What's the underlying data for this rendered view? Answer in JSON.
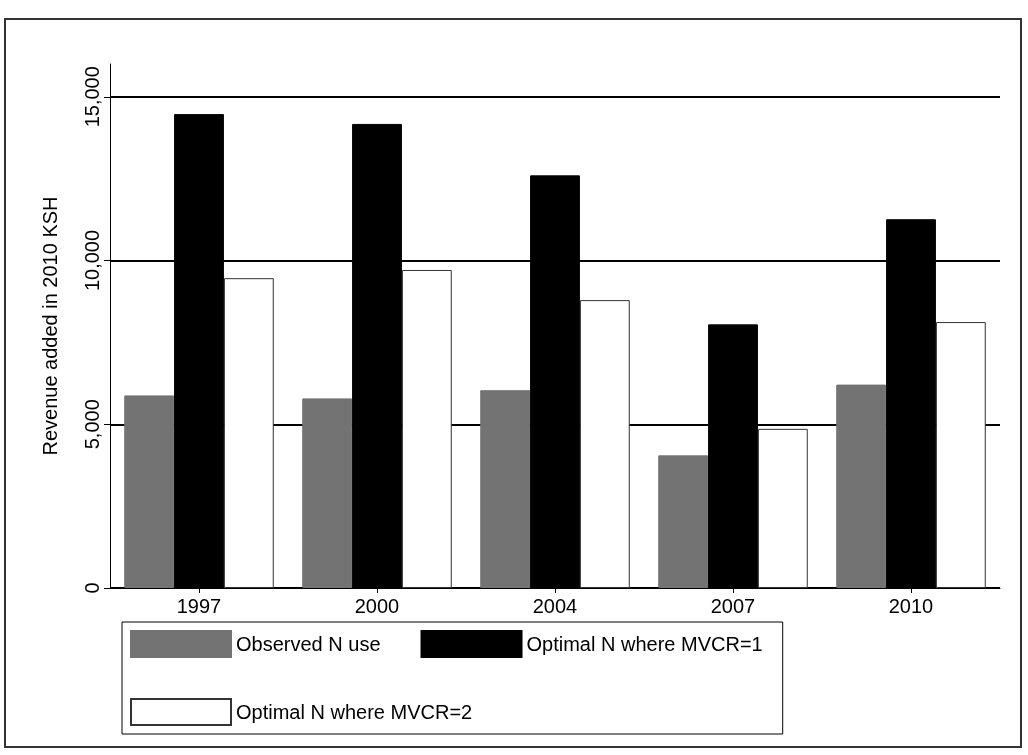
{
  "chart_data": {
    "type": "bar",
    "ylabel": "Revenue added in 2010 KSH",
    "categories": [
      "1997",
      "2000",
      "2004",
      "2007",
      "2010"
    ],
    "series": [
      {
        "name": "Observed N use",
        "color": "#737373",
        "values": [
          5880,
          5790,
          6040,
          4050,
          6210
        ]
      },
      {
        "name": "Optimal N where MVCR=1",
        "color": "#000000",
        "values": [
          14470,
          14170,
          12600,
          8050,
          11260
        ]
      },
      {
        "name": "Optimal N where MVCR=2",
        "color": "#ffffff",
        "values": [
          9460,
          9710,
          8790,
          4860,
          8120
        ]
      }
    ],
    "ylim": [
      0,
      16000
    ],
    "yticks": [
      0,
      {
        "value": 5000,
        "label": "5,000"
      },
      {
        "value": 10000,
        "label": "10,000"
      },
      {
        "value": 15000,
        "label": "15,000"
      }
    ],
    "grid": "y",
    "legend": "bottom"
  }
}
